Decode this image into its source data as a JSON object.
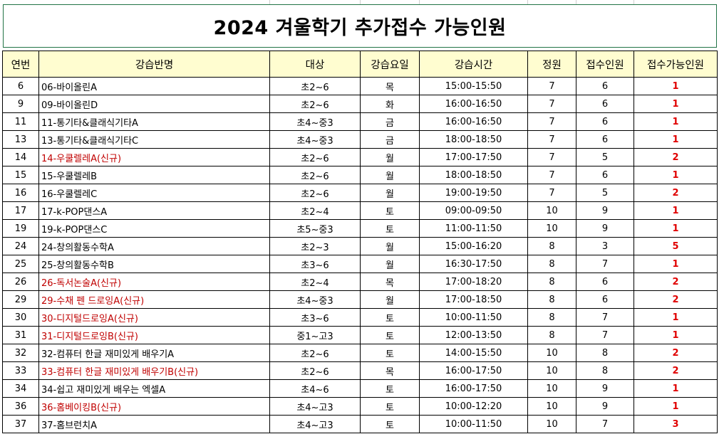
{
  "title": "2024 겨울학기 추가접수 가능인원",
  "headers": [
    "연번",
    "강습반명",
    "대상",
    "강습요일",
    "강습시간",
    "정원",
    "접수인원",
    "접수가능인원"
  ],
  "rows": [
    {
      "no": "6",
      "name": "06-바이올린A",
      "target": "초2~6",
      "day": "목",
      "time": "15:00-15:50",
      "cap": "7",
      "reg": "6",
      "avail": "1",
      "new": false
    },
    {
      "no": "9",
      "name": "09-바이올린D",
      "target": "초2~6",
      "day": "화",
      "time": "16:00-16:50",
      "cap": "7",
      "reg": "6",
      "avail": "1",
      "new": false
    },
    {
      "no": "11",
      "name": "11-통기타&클래식기타A",
      "target": "초4~중3",
      "day": "금",
      "time": "16:00-16:50",
      "cap": "7",
      "reg": "6",
      "avail": "1",
      "new": false
    },
    {
      "no": "13",
      "name": "13-통기타&클래식기타C",
      "target": "초4~중3",
      "day": "금",
      "time": "18:00-18:50",
      "cap": "7",
      "reg": "6",
      "avail": "1",
      "new": false
    },
    {
      "no": "14",
      "name": "14-우쿨렐레A(신규)",
      "target": "초2~6",
      "day": "월",
      "time": "17:00-17:50",
      "cap": "7",
      "reg": "5",
      "avail": "2",
      "new": true
    },
    {
      "no": "15",
      "name": "15-우쿨렐레B",
      "target": "초2~6",
      "day": "월",
      "time": "18:00-18:50",
      "cap": "7",
      "reg": "6",
      "avail": "1",
      "new": false
    },
    {
      "no": "16",
      "name": "16-우쿨렐레C",
      "target": "초2~6",
      "day": "월",
      "time": "19:00-19:50",
      "cap": "7",
      "reg": "5",
      "avail": "2",
      "new": false
    },
    {
      "no": "17",
      "name": "17-k-POP댄스A",
      "target": "초2~4",
      "day": "토",
      "time": "09:00-09:50",
      "cap": "10",
      "reg": "9",
      "avail": "1",
      "new": false
    },
    {
      "no": "19",
      "name": "19-k-POP댄스C",
      "target": "초5~중3",
      "day": "토",
      "time": "11:00-11:50",
      "cap": "10",
      "reg": "9",
      "avail": "1",
      "new": false
    },
    {
      "no": "24",
      "name": "24-창의활동수학A",
      "target": "초2~3",
      "day": "월",
      "time": "15:00-16:20",
      "cap": "8",
      "reg": "3",
      "avail": "5",
      "new": false
    },
    {
      "no": "25",
      "name": "25-창의활동수학B",
      "target": "초3~6",
      "day": "월",
      "time": "16:30-17:50",
      "cap": "8",
      "reg": "7",
      "avail": "1",
      "new": false
    },
    {
      "no": "26",
      "name": "26-독서논술A(신규)",
      "target": "초2~4",
      "day": "목",
      "time": "17:00-18:20",
      "cap": "8",
      "reg": "6",
      "avail": "2",
      "new": true
    },
    {
      "no": "29",
      "name": "29-수채 펜 드로잉A(신규)",
      "target": "초4~중3",
      "day": "월",
      "time": "17:00-18:50",
      "cap": "8",
      "reg": "6",
      "avail": "2",
      "new": true
    },
    {
      "no": "30",
      "name": "30-디지털드로잉A(신규)",
      "target": "초3~6",
      "day": "토",
      "time": "10:00-11:50",
      "cap": "8",
      "reg": "7",
      "avail": "1",
      "new": true
    },
    {
      "no": "31",
      "name": "31-디지털드로잉B(신규)",
      "target": "중1~고3",
      "day": "토",
      "time": "12:00-13:50",
      "cap": "8",
      "reg": "7",
      "avail": "1",
      "new": true
    },
    {
      "no": "32",
      "name": "32-컴퓨터 한글 재미있게 배우기A",
      "target": "초2~6",
      "day": "토",
      "time": "14:00-15:50",
      "cap": "10",
      "reg": "8",
      "avail": "2",
      "new": false
    },
    {
      "no": "33",
      "name": "33-컴퓨터 한글 재미있게 배우기B(신규)",
      "target": "초2~6",
      "day": "목",
      "time": "16:00-17:50",
      "cap": "10",
      "reg": "8",
      "avail": "2",
      "new": true
    },
    {
      "no": "34",
      "name": "34-쉽고 재미있게 배우는 엑셀A",
      "target": "초4~6",
      "day": "토",
      "time": "16:00-17:50",
      "cap": "10",
      "reg": "9",
      "avail": "1",
      "new": false
    },
    {
      "no": "36",
      "name": "36-홈베이킹B(신규)",
      "target": "초4~고3",
      "day": "토",
      "time": "10:00-12:20",
      "cap": "10",
      "reg": "9",
      "avail": "1",
      "new": true
    },
    {
      "no": "37",
      "name": "37-홈브런치A",
      "target": "초4~고3",
      "day": "토",
      "time": "10:00-11:50",
      "cap": "10",
      "reg": "7",
      "avail": "3",
      "new": false
    }
  ],
  "colors": {
    "header_bg": "#fffdd0",
    "new_class_text": "#c00000",
    "available_text": "#e00000",
    "title_border": "#217346"
  }
}
